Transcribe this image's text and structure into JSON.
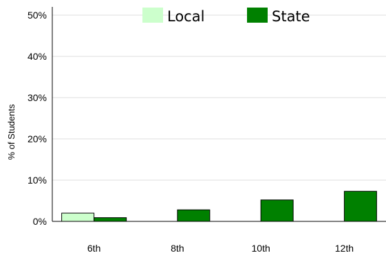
{
  "chart_data": {
    "type": "bar",
    "categories": [
      "6th",
      "8th",
      "10th",
      "12th"
    ],
    "series": [
      {
        "name": "Local",
        "values": [
          2.0,
          null,
          null,
          null
        ],
        "color": "#ccffcc"
      },
      {
        "name": "State",
        "values": [
          0.9,
          2.8,
          5.2,
          7.3
        ],
        "color": "#008000"
      }
    ],
    "ylabel": "% of Students",
    "ylim": [
      0,
      50
    ],
    "yticks": [
      "0%",
      "10%",
      "20%",
      "30%",
      "40%",
      "50%"
    ],
    "grid": true,
    "legend": "top"
  }
}
